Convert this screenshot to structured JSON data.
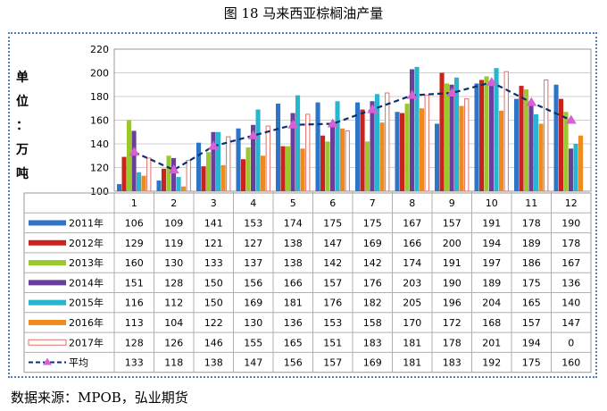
{
  "figure_title": "图 18  马来西亚棕榈油产量",
  "unit_label_chars": [
    "单",
    "位",
    "：",
    "万",
    "吨"
  ],
  "source": "数据来源：MPOB，弘业期货",
  "chart_data": {
    "type": "bar",
    "title": "",
    "xlabel": "",
    "ylabel": "单位：万吨",
    "ylim": [
      100,
      220
    ],
    "yticks": [
      100,
      120,
      140,
      160,
      180,
      200,
      220
    ],
    "grid": true,
    "legend": "table-left",
    "categories": [
      "1",
      "2",
      "3",
      "4",
      "5",
      "6",
      "7",
      "8",
      "9",
      "10",
      "11",
      "12"
    ],
    "series": [
      {
        "name": "2011年",
        "type": "bar",
        "color": "#2e75c8",
        "values": [
          106,
          109,
          141,
          153,
          174,
          175,
          175,
          167,
          157,
          191,
          178,
          190
        ]
      },
      {
        "name": "2012年",
        "type": "bar",
        "color": "#c8241c",
        "values": [
          129,
          119,
          121,
          127,
          138,
          147,
          169,
          166,
          200,
          194,
          189,
          178
        ]
      },
      {
        "name": "2013年",
        "type": "bar",
        "color": "#9bc82e",
        "values": [
          160,
          130,
          133,
          137,
          138,
          142,
          142,
          174,
          191,
          197,
          186,
          167
        ]
      },
      {
        "name": "2014年",
        "type": "bar",
        "color": "#6a3f9c",
        "values": [
          151,
          128,
          150,
          156,
          166,
          157,
          176,
          203,
          190,
          189,
          175,
          136
        ]
      },
      {
        "name": "2015年",
        "type": "bar",
        "color": "#27b5d0",
        "values": [
          116,
          112,
          150,
          169,
          181,
          176,
          182,
          205,
          196,
          204,
          165,
          140
        ]
      },
      {
        "name": "2016年",
        "type": "bar",
        "color": "#f08a1e",
        "values": [
          113,
          104,
          122,
          130,
          136,
          153,
          158,
          170,
          172,
          168,
          157,
          147
        ]
      },
      {
        "name": "2017年",
        "type": "bar-outline",
        "color": "#e0706a",
        "values": [
          128,
          126,
          146,
          155,
          165,
          151,
          183,
          181,
          178,
          201,
          194,
          0
        ]
      },
      {
        "name": "平均",
        "type": "line",
        "color": "#0e2f6b",
        "marker_color": "#d95fd6",
        "values": [
          133,
          118,
          138,
          147,
          156,
          157,
          169,
          181,
          183,
          192,
          175,
          160
        ]
      }
    ]
  }
}
